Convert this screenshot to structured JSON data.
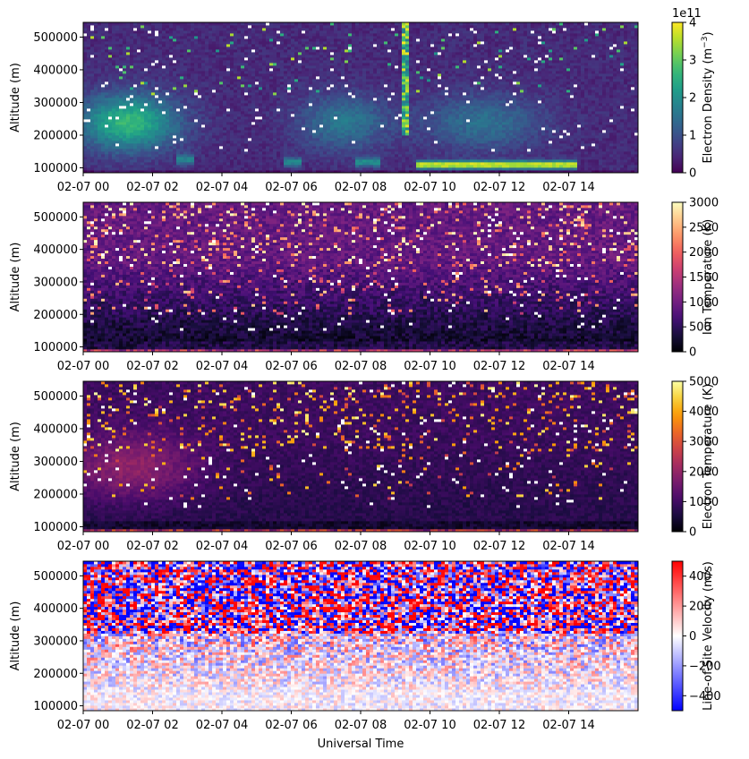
{
  "figure": {
    "xlabel_bottom": "Universal Time",
    "time_range_hours": [
      0,
      16
    ],
    "x_ticks": [
      {
        "h": 0,
        "label": "02-07 00"
      },
      {
        "h": 2,
        "label": "02-07 02"
      },
      {
        "h": 4,
        "label": "02-07 04"
      },
      {
        "h": 6,
        "label": "02-07 06"
      },
      {
        "h": 8,
        "label": "02-07 08"
      },
      {
        "h": 10,
        "label": "02-07 10"
      },
      {
        "h": 12,
        "label": "02-07 12"
      },
      {
        "h": 14,
        "label": "02-07 14"
      }
    ]
  },
  "chart_data": [
    {
      "type": "heatmap",
      "panel": "electron-density",
      "ylabel": "Altitude (m)",
      "ylim": [
        85000,
        545000
      ],
      "y_ticks": [
        {
          "v": 100000,
          "label": "100000"
        },
        {
          "v": 200000,
          "label": "200000"
        },
        {
          "v": 300000,
          "label": "300000"
        },
        {
          "v": 400000,
          "label": "400000"
        },
        {
          "v": 500000,
          "label": "500000"
        }
      ],
      "colorbar": {
        "label": "Electron Density (m",
        "label_sup": "−3",
        "label_end": ")",
        "multiplier": "1e11",
        "colormap": "viridis",
        "range": [
          0,
          4
        ],
        "ticks": [
          {
            "v": 0,
            "label": "0"
          },
          {
            "v": 1,
            "label": "1"
          },
          {
            "v": 2,
            "label": "2"
          },
          {
            "v": 3,
            "label": "3"
          },
          {
            "v": 4,
            "label": "4"
          }
        ]
      },
      "features": [
        "F-region ~2.5e11 at 200-300 km from 00 to 03 UT",
        "E-region enhancement ~4e11 near 110 km from 10 to 14 UT",
        "vertical streak near 09:15 UT"
      ]
    },
    {
      "type": "heatmap",
      "panel": "ion-temperature",
      "ylabel": "Altitude (m)",
      "ylim": [
        85000,
        545000
      ],
      "y_ticks": [
        {
          "v": 100000,
          "label": "100000"
        },
        {
          "v": 200000,
          "label": "200000"
        },
        {
          "v": 300000,
          "label": "300000"
        },
        {
          "v": 400000,
          "label": "400000"
        },
        {
          "v": 500000,
          "label": "500000"
        }
      ],
      "colorbar": {
        "label": "Ion Temperature (K)",
        "colormap": "magma",
        "range": [
          0,
          3000
        ],
        "ticks": [
          {
            "v": 0,
            "label": "0"
          },
          {
            "v": 500,
            "label": "500"
          },
          {
            "v": 1000,
            "label": "1000"
          },
          {
            "v": 1500,
            "label": "1500"
          },
          {
            "v": 2000,
            "label": "2000"
          },
          {
            "v": 2500,
            "label": "2500"
          },
          {
            "v": 3000,
            "label": "3000"
          }
        ]
      },
      "features": [
        "~1000 K at 200-300 km",
        "noisy speckle above 350 km"
      ]
    },
    {
      "type": "heatmap",
      "panel": "electron-temperature",
      "ylabel": "Altitude (m)",
      "ylim": [
        85000,
        545000
      ],
      "y_ticks": [
        {
          "v": 100000,
          "label": "100000"
        },
        {
          "v": 200000,
          "label": "200000"
        },
        {
          "v": 300000,
          "label": "300000"
        },
        {
          "v": 400000,
          "label": "400000"
        },
        {
          "v": 500000,
          "label": "500000"
        }
      ],
      "colorbar": {
        "label": "Electron Temperature (K)",
        "colormap": "inferno",
        "range": [
          0,
          5000
        ],
        "ticks": [
          {
            "v": 0,
            "label": "0"
          },
          {
            "v": 1000,
            "label": "1000"
          },
          {
            "v": 2000,
            "label": "2000"
          },
          {
            "v": 3000,
            "label": "3000"
          },
          {
            "v": 4000,
            "label": "4000"
          },
          {
            "v": 5000,
            "label": "5000"
          }
        ]
      },
      "features": [
        "~2000 K at 200-350 km from 00 to 03 UT"
      ]
    },
    {
      "type": "heatmap",
      "panel": "line-of-site-velocity",
      "ylabel": "Altitude (m)",
      "xlabel": "Universal Time",
      "ylim": [
        85000,
        545000
      ],
      "y_ticks": [
        {
          "v": 100000,
          "label": "100000"
        },
        {
          "v": 200000,
          "label": "200000"
        },
        {
          "v": 300000,
          "label": "300000"
        },
        {
          "v": 400000,
          "label": "400000"
        },
        {
          "v": 500000,
          "label": "500000"
        }
      ],
      "colorbar": {
        "label": "Line-of-Site Velocity (m/s)",
        "colormap": "bwr",
        "range": [
          -500,
          500
        ],
        "ticks": [
          {
            "v": -400,
            "label": "−400"
          },
          {
            "v": -200,
            "label": "−200"
          },
          {
            "v": 0,
            "label": "0"
          },
          {
            "v": 200,
            "label": "200"
          },
          {
            "v": 400,
            "label": "400"
          }
        ]
      },
      "features": [
        "near-zero below 300 km",
        "±500 m/s noise above 350 km"
      ]
    }
  ]
}
